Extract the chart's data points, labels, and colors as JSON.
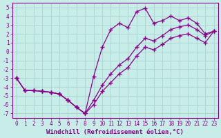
{
  "xlabel": "Windchill (Refroidissement éolien,°C)",
  "background_color": "#c8ece8",
  "grid_color": "#a8d4d0",
  "line_color": "#880088",
  "marker": "+",
  "markersize": 4,
  "linewidth": 0.9,
  "xlim": [
    -0.5,
    23.5
  ],
  "ylim": [
    -7.5,
    5.5
  ],
  "xticks": [
    0,
    1,
    2,
    3,
    4,
    5,
    6,
    7,
    8,
    9,
    10,
    11,
    12,
    13,
    14,
    15,
    16,
    17,
    18,
    19,
    20,
    21,
    22,
    23
  ],
  "yticks": [
    5,
    4,
    3,
    2,
    1,
    0,
    -1,
    -2,
    -3,
    -4,
    -5,
    -6,
    -7
  ],
  "line1_x": [
    0,
    1,
    2,
    3,
    4,
    5,
    6,
    7,
    8,
    9,
    10,
    11,
    12,
    13,
    14,
    15,
    16,
    17,
    18,
    19,
    20,
    21,
    22,
    23
  ],
  "line1_y": [
    -3.0,
    -4.4,
    -4.4,
    -4.5,
    -4.6,
    -4.8,
    -5.5,
    -6.3,
    -7.0,
    -2.8,
    0.5,
    2.5,
    3.2,
    2.7,
    4.5,
    4.9,
    3.2,
    3.5,
    4.0,
    3.5,
    3.8,
    3.2,
    2.0,
    2.3
  ],
  "line2_x": [
    0,
    1,
    2,
    3,
    4,
    5,
    6,
    7,
    8,
    9,
    10,
    11,
    12,
    13,
    14,
    15,
    16,
    17,
    18,
    19,
    20,
    21,
    22,
    23
  ],
  "line2_y": [
    -3.0,
    -4.4,
    -4.4,
    -4.5,
    -4.6,
    -4.8,
    -5.5,
    -6.3,
    -7.0,
    -5.5,
    -3.8,
    -2.5,
    -1.5,
    -0.8,
    0.5,
    1.5,
    1.2,
    1.8,
    2.5,
    2.8,
    3.0,
    2.5,
    1.8,
    2.3
  ],
  "line3_x": [
    0,
    1,
    2,
    3,
    4,
    5,
    6,
    7,
    8,
    9,
    10,
    11,
    12,
    13,
    14,
    15,
    16,
    17,
    18,
    19,
    20,
    21,
    22,
    23
  ],
  "line3_y": [
    -3.0,
    -4.4,
    -4.4,
    -4.5,
    -4.6,
    -4.8,
    -5.5,
    -6.3,
    -7.0,
    -6.0,
    -4.5,
    -3.5,
    -2.5,
    -1.8,
    -0.5,
    0.5,
    0.2,
    0.8,
    1.5,
    1.8,
    2.0,
    1.5,
    1.0,
    2.3
  ],
  "tick_fontsize": 5.5,
  "label_fontsize": 6.5
}
